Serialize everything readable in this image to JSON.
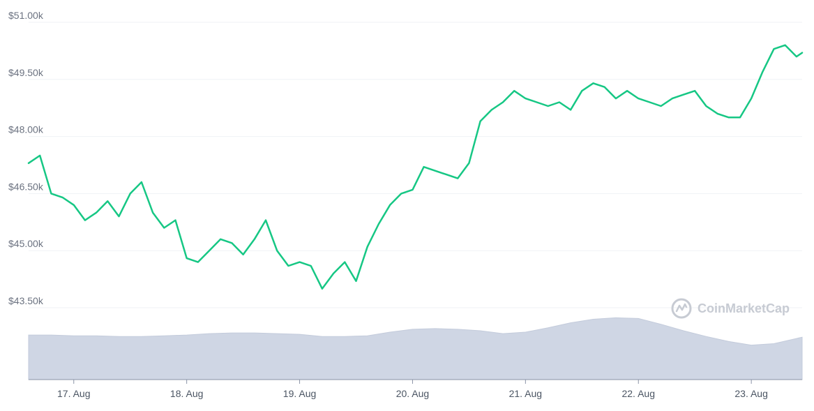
{
  "watermark": {
    "text": "CoinMarketCap"
  },
  "colors": {
    "price_line": "#16c784",
    "volume_fill": "#cfd6e4",
    "volume_stroke": "#c3cbdb",
    "grid": "#eff2f5",
    "axis_text": "#6b7280"
  },
  "chart_data": {
    "type": "line",
    "title": "",
    "xlabel": "",
    "ylabel": "",
    "ylim": [
      43500,
      51000
    ],
    "y_ticks": [
      {
        "value": 51000,
        "label": "$51.00k"
      },
      {
        "value": 49500,
        "label": "$49.50k"
      },
      {
        "value": 48000,
        "label": "$48.00k"
      },
      {
        "value": 46500,
        "label": "$46.50k"
      },
      {
        "value": 45000,
        "label": "$45.00k"
      },
      {
        "value": 43500,
        "label": "$43.50k"
      }
    ],
    "xlim": [
      16.6,
      23.45
    ],
    "x_ticks": [
      {
        "value": 17,
        "label": "17. Aug"
      },
      {
        "value": 18,
        "label": "18. Aug"
      },
      {
        "value": 19,
        "label": "19. Aug"
      },
      {
        "value": 20,
        "label": "20. Aug"
      },
      {
        "value": 21,
        "label": "21. Aug"
      },
      {
        "value": 22,
        "label": "22. Aug"
      },
      {
        "value": 23,
        "label": "23. Aug"
      }
    ],
    "grid": "horizontal",
    "series": [
      {
        "type": "line",
        "x": [
          16.6,
          16.7,
          16.8,
          16.9,
          17.0,
          17.1,
          17.2,
          17.3,
          17.4,
          17.5,
          17.6,
          17.7,
          17.8,
          17.9,
          18.0,
          18.1,
          18.2,
          18.3,
          18.4,
          18.5,
          18.6,
          18.7,
          18.8,
          18.9,
          19.0,
          19.1,
          19.2,
          19.3,
          19.4,
          19.5,
          19.6,
          19.7,
          19.8,
          19.9,
          20.0,
          20.1,
          20.2,
          20.3,
          20.4,
          20.5,
          20.6,
          20.7,
          20.8,
          20.9,
          21.0,
          21.1,
          21.2,
          21.3,
          21.4,
          21.5,
          21.6,
          21.7,
          21.8,
          21.9,
          22.0,
          22.1,
          22.2,
          22.3,
          22.4,
          22.5,
          22.6,
          22.7,
          22.8,
          22.9,
          23.0,
          23.1,
          23.2,
          23.3,
          23.4,
          23.45
        ],
        "values": [
          47300,
          47500,
          46500,
          46400,
          46200,
          45800,
          46000,
          46300,
          45900,
          46500,
          46800,
          46000,
          45600,
          45800,
          44800,
          44700,
          45000,
          45300,
          45200,
          44900,
          45300,
          45800,
          45000,
          44600,
          44700,
          44600,
          44000,
          44400,
          44700,
          44200,
          45100,
          45700,
          46200,
          46500,
          46600,
          47200,
          47100,
          47000,
          46900,
          47300,
          48400,
          48700,
          48900,
          49200,
          49000,
          48900,
          48800,
          48900,
          48700,
          49200,
          49400,
          49300,
          49000,
          49200,
          49000,
          48900,
          48800,
          49000,
          49100,
          49200,
          48800,
          48600,
          48500,
          48500,
          49000,
          49700,
          50300,
          50400,
          50100,
          50200
        ]
      },
      {
        "type": "area",
        "name": "",
        "x": [
          16.6,
          16.8,
          17.0,
          17.2,
          17.4,
          17.6,
          17.8,
          18.0,
          18.2,
          18.4,
          18.6,
          18.8,
          19.0,
          19.2,
          19.4,
          19.6,
          19.8,
          20.0,
          20.2,
          20.4,
          20.6,
          20.8,
          21.0,
          21.2,
          21.4,
          21.6,
          21.8,
          22.0,
          22.2,
          22.4,
          22.6,
          22.8,
          23.0,
          23.2,
          23.45
        ],
        "values": [
          0.62,
          0.62,
          0.61,
          0.61,
          0.6,
          0.6,
          0.61,
          0.62,
          0.64,
          0.65,
          0.65,
          0.64,
          0.63,
          0.6,
          0.6,
          0.61,
          0.66,
          0.7,
          0.71,
          0.7,
          0.68,
          0.64,
          0.66,
          0.72,
          0.79,
          0.84,
          0.86,
          0.85,
          0.77,
          0.68,
          0.6,
          0.53,
          0.48,
          0.5,
          0.59
        ]
      }
    ]
  }
}
